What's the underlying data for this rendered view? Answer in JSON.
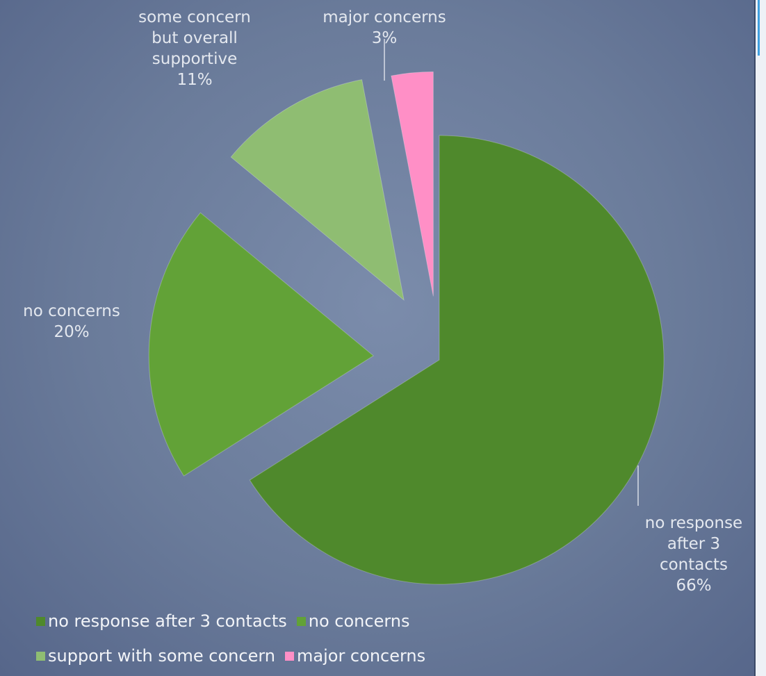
{
  "chart_data": {
    "type": "pie",
    "categories": [
      "no response after 3 contacts",
      "no concerns",
      "support with some concern",
      "major concerns"
    ],
    "values": [
      66,
      20,
      11,
      3
    ],
    "value_labels": [
      "66%",
      "20%",
      "11%",
      "3%"
    ],
    "data_labels": [
      "no response after 3 contacts",
      "no concerns",
      "some concern but overall supportive",
      "major concerns"
    ],
    "colors": [
      "#4f892c",
      "#62a237",
      "#8fbd72",
      "#ff8fc6"
    ],
    "legend": "bottom"
  }
}
